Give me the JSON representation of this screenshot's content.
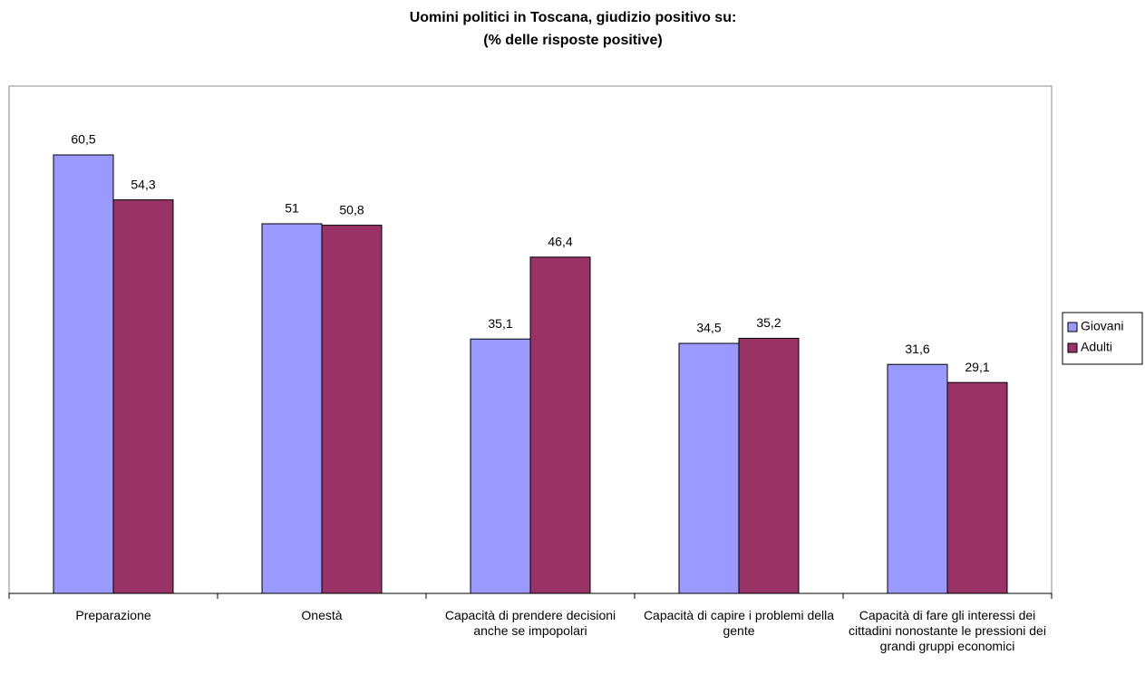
{
  "chart_data": {
    "type": "bar",
    "title": "Uomini politici in Toscana, giudizio positivo su:",
    "subtitle": "(% delle risposte positive)",
    "categories": [
      "Preparazione",
      "Onestà",
      "Capacità di prendere decisioni anche se impopolari",
      "Capacità di capire i problemi della gente",
      "Capacità di fare gli interessi dei cittadini nonostante le pressioni dei grandi gruppi economici"
    ],
    "series": [
      {
        "name": "Giovani",
        "color": "#9999ff",
        "values": [
          60.5,
          51,
          35.1,
          34.5,
          31.6
        ],
        "value_labels": [
          "60,5",
          "51",
          "35,1",
          "34,5",
          "31,6"
        ]
      },
      {
        "name": "Adulti",
        "color": "#993366",
        "values": [
          54.3,
          50.8,
          46.4,
          35.2,
          29.1
        ],
        "value_labels": [
          "54,3",
          "50,8",
          "46,4",
          "35,2",
          "29,1"
        ]
      }
    ],
    "ylim": [
      0,
      70
    ],
    "legend": "right"
  }
}
